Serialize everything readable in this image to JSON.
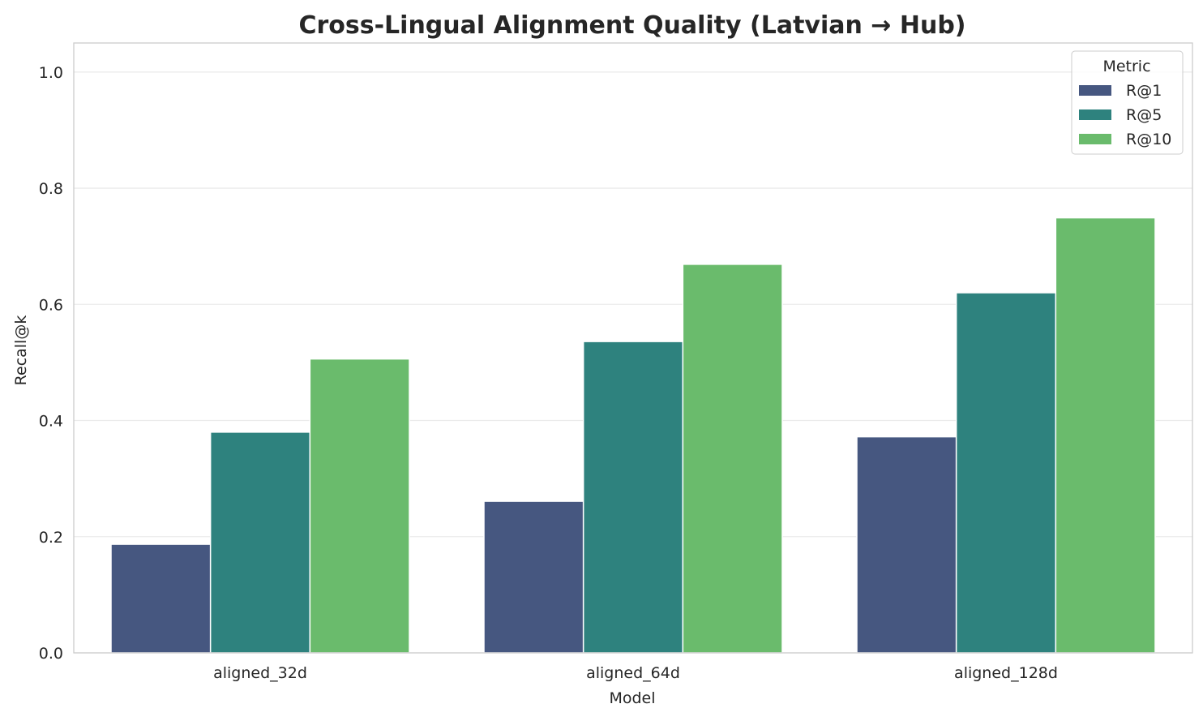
{
  "chart_data": {
    "type": "bar",
    "title": "Cross-Lingual Alignment Quality (Latvian → Hub)",
    "xlabel": "Model",
    "ylabel": "Recall@k",
    "ylim": [
      0,
      1.05
    ],
    "yticks": [
      "0.0",
      "0.2",
      "0.4",
      "0.6",
      "0.8",
      "1.0"
    ],
    "grid": true,
    "legend": {
      "title": "Metric",
      "placement": "top-right"
    },
    "categories": [
      "aligned_32d",
      "aligned_64d",
      "aligned_128d"
    ],
    "series": [
      {
        "name": "R@1",
        "color": "#465780",
        "values": [
          0.187,
          0.261,
          0.372
        ]
      },
      {
        "name": "R@5",
        "color": "#2e827e",
        "values": [
          0.38,
          0.536,
          0.62
        ]
      },
      {
        "name": "R@10",
        "color": "#6abb6c",
        "values": [
          0.506,
          0.669,
          0.749
        ]
      }
    ]
  }
}
